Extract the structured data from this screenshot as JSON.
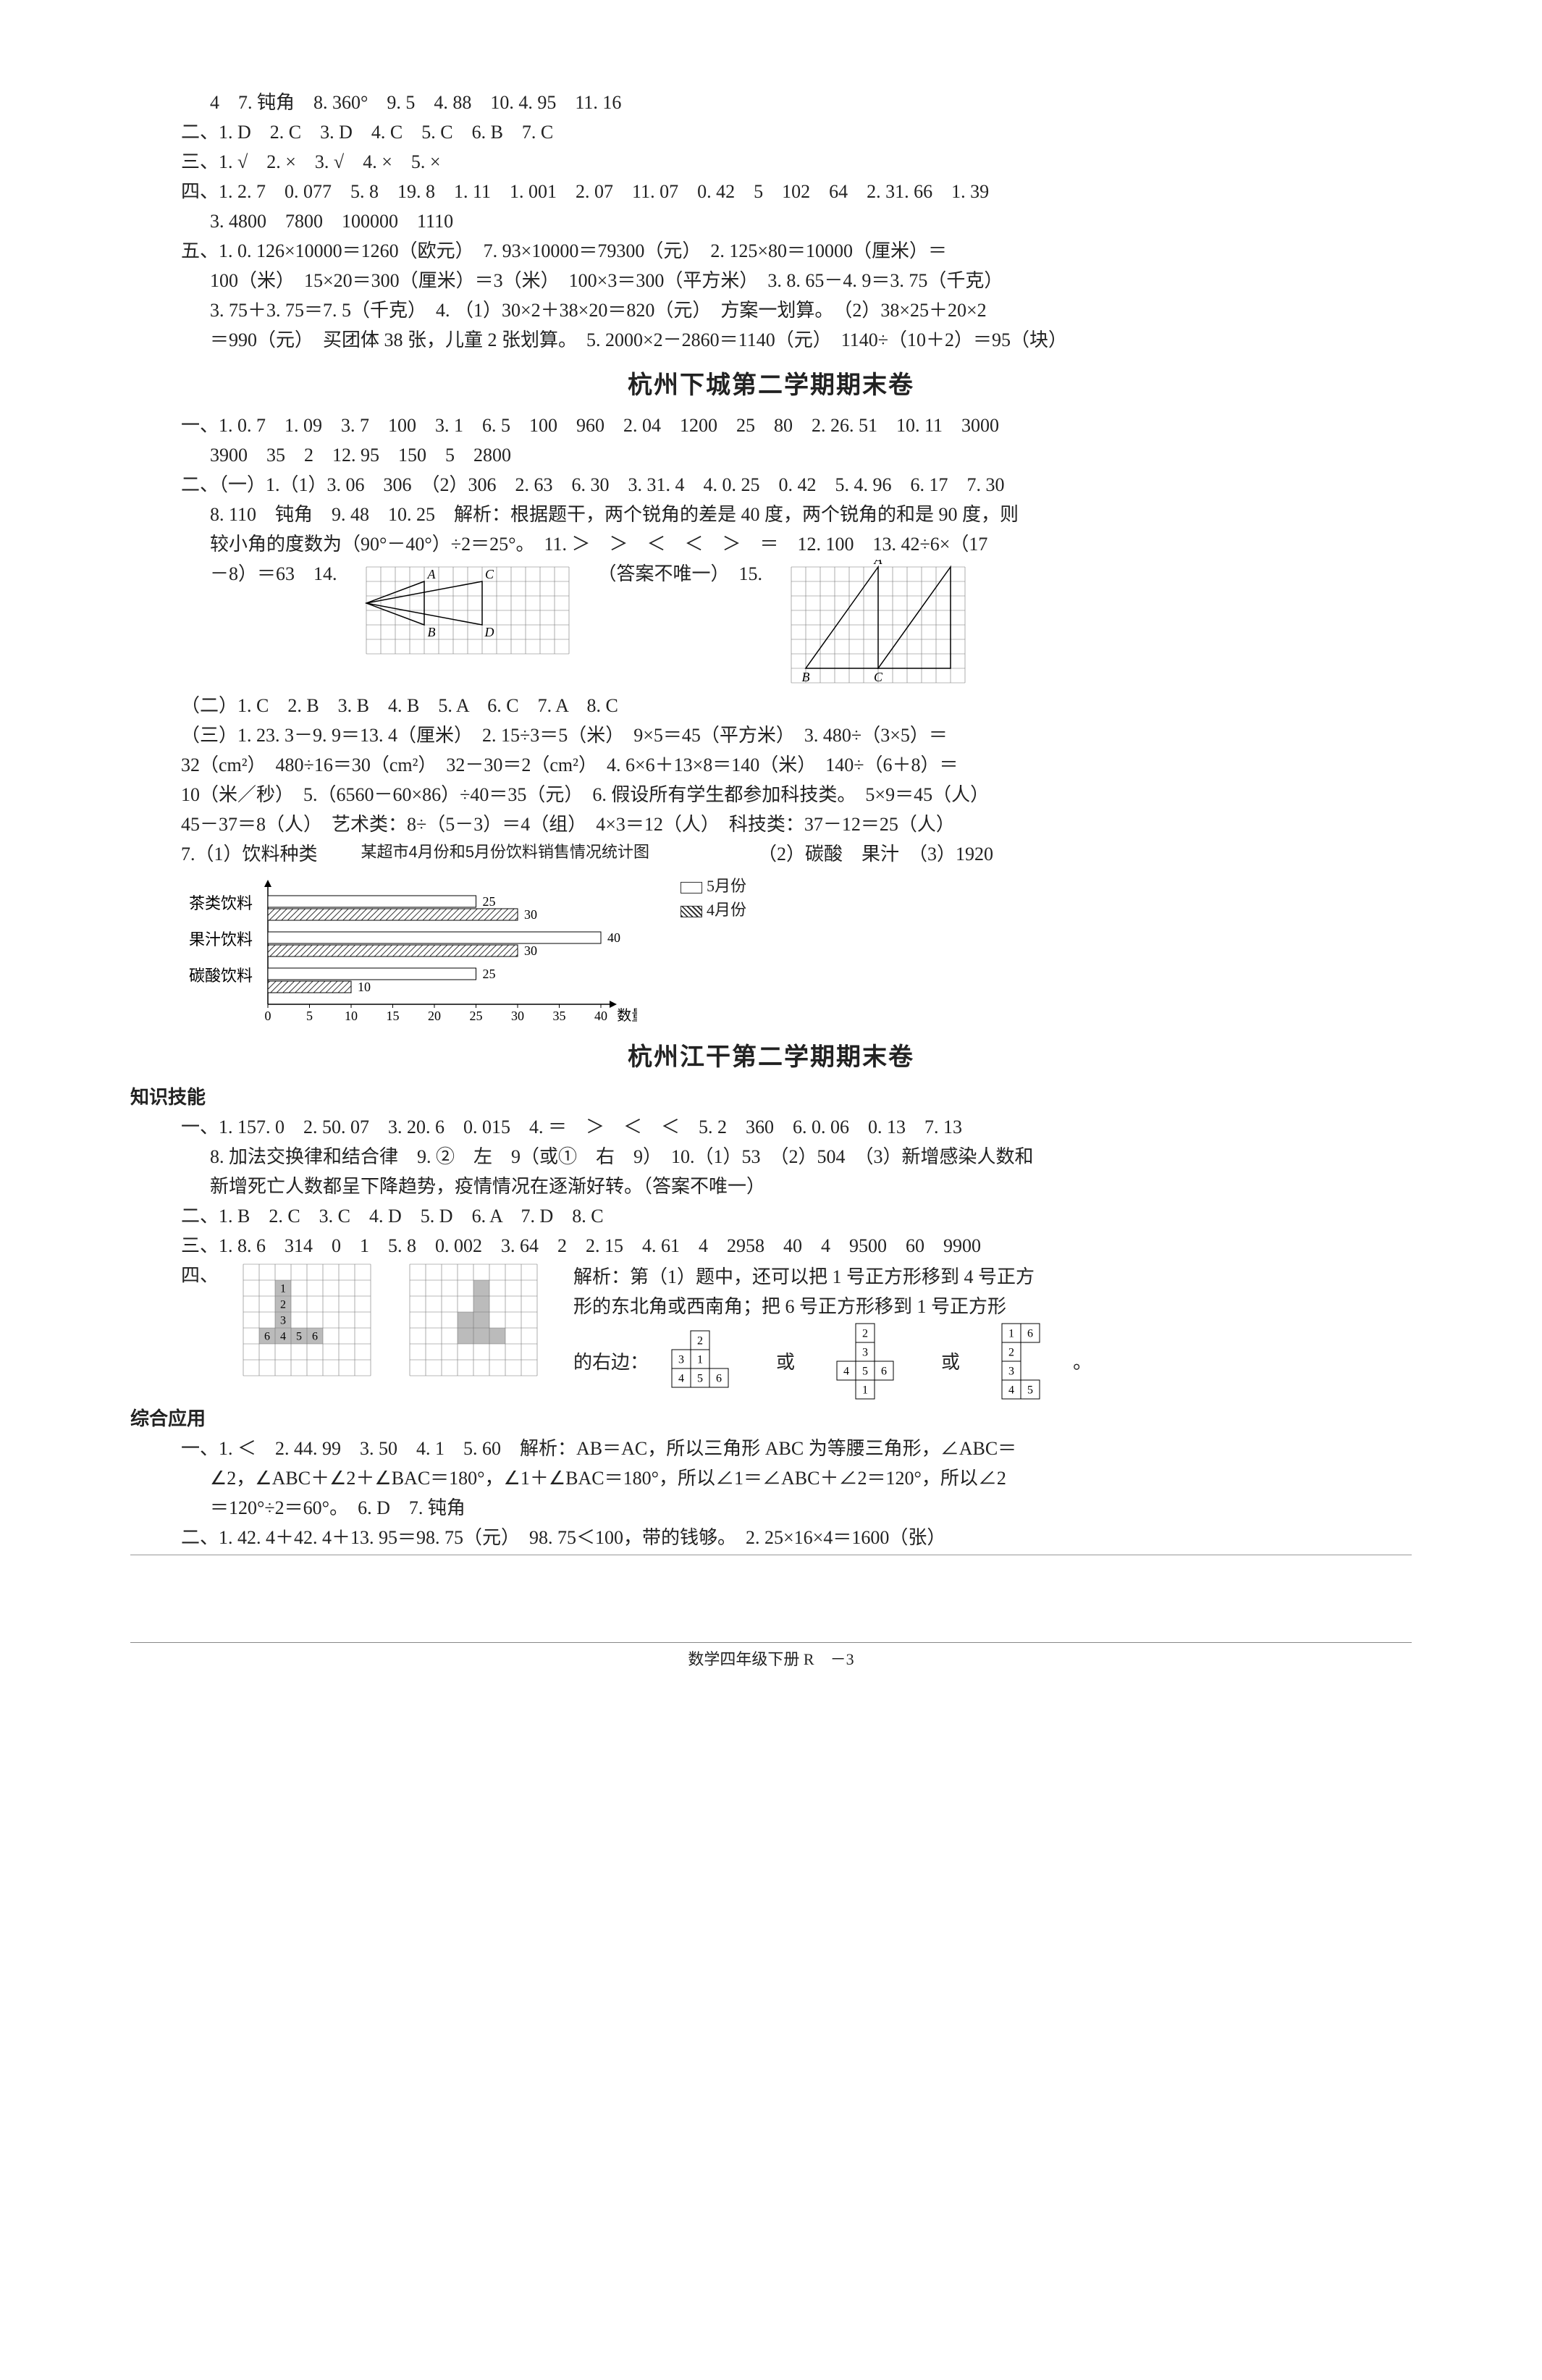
{
  "top": {
    "l1": "4　7. 钝角　8. 360°　9. 5　4. 88　10. 4. 95　11. 16",
    "l2": "二、1. D　2. C　3. D　4. C　5. C　6. B　7. C",
    "l3": "三、1. √　2. ×　3. √　4. ×　5. ×",
    "l4": "四、1. 2. 7　0. 077　5. 8　19. 8　1. 11　1. 001　2. 07　11. 07　0. 42　5　102　64　2. 31. 66　1. 39",
    "l4b": "3. 4800　7800　100000　1110",
    "l5": "五、1. 0. 126×10000＝1260（欧元）　7. 93×10000＝79300（元）　2. 125×80＝10000（厘米）＝",
    "l5b": "100（米）　15×20＝300（厘米）＝3（米）　100×3＝300（平方米）　3. 8. 65－4. 9＝3. 75（千克）",
    "l5c": "3. 75＋3. 75＝7. 5（千克）　4. （1）30×2＋38×20＝820（元）　方案一划算。　（2）38×25＋20×2",
    "l5d": "＝990（元）　买团体 38 张，儿童 2 张划算。　5. 2000×2－2860＝1140（元）　1140÷（10＋2）＝95（块）"
  },
  "title1": "杭州下城第二学期期末卷",
  "xc": {
    "l1": "一、1. 0. 7　1. 09　3. 7　100　3. 1　6. 5　100　960　2. 04　1200　25　80　2. 26. 51　10. 11　3000",
    "l1b": "3900　35　2　12. 95　150　5　2800",
    "l2": "二、（一）1.（1）3. 06　306　（2）306　2. 63　6. 30　3. 31. 4　4. 0. 25　0. 42　5. 4. 96　6. 17　7. 30",
    "l2b": "8. 110　钝角　9. 48　10. 25　解析：根据题干，两个锐角的差是 40 度，两个锐角的和是 90 度，则",
    "l2c": "较小角的度数为（90°－40°）÷2＝25°。　11. ＞　＞　＜　＜　＞　＝　12. 100　13. 42÷6×（17",
    "l2d_pre": "－8）＝63　14.",
    "l2d_mid": "（答案不唯一）　15.",
    "l3": "（二）1. C　2. B　3. B　4. B　5. A　6. C　7. A　8. C",
    "l4": "（三）1. 23. 3－9. 9＝13. 4（厘米）　2. 15÷3＝5（米）　9×5＝45（平方米）　3. 480÷（3×5）＝",
    "l4b": "32（cm²）　480÷16＝30（cm²）　32－30＝2（cm²）　4. 6×6＋13×8＝140（米）　140÷（6＋8）＝",
    "l4c": "10（米／秒）　5.（6560－60×86）÷40＝35（元）　6. 假设所有学生都参加科技类。　5×9＝45（人）",
    "l4d": "45－37＝8（人）　艺术类：8÷（5－3）＝4（组）　4×3＝12（人）　科技类：37－12＝25（人）",
    "l4e": "7.（1）饮料种类",
    "chart_title": "某超市4月份和5月份饮料销售情况统计图",
    "l4e_r": "（2）碳酸　果汁　（3）1920",
    "legend1": "5月份",
    "legend2": "4月份",
    "ylabels": [
      "茶类饮料",
      "果汁饮料",
      "碳酸饮料"
    ],
    "xlabel": "数量/箱",
    "xticks": [
      0,
      5,
      10,
      15,
      20,
      25,
      30,
      35,
      40
    ],
    "bars": {
      "tea": {
        "month5": 25,
        "month4": 30
      },
      "juice": {
        "month5": 40,
        "month4": 30
      },
      "soda": {
        "month5": 25,
        "month4": 10
      }
    },
    "chart_colors": {
      "m5": "#ffffff",
      "m4": "hatch",
      "border": "#333",
      "axis": "#333"
    }
  },
  "title2": "杭州江干第二学期期末卷",
  "jg": {
    "h1": "知识技能",
    "l1": "一、1. 157. 0　2. 50. 07　3. 20. 6　0. 015　4. ＝　＞　＜　＜　5. 2　360　6. 0. 06　0. 13　7. 13",
    "l1b": "8. 加法交换律和结合律　9. ②　左　9（或①　右　9）　10.（1）53　（2）504　（3）新增感染人数和",
    "l1c": "新增死亡人数都呈下降趋势，疫情情况在逐渐好转。（答案不唯一）",
    "l2": "二、1. B　2. C　3. C　4. D　5. D　6. A　7. D　8. C",
    "l3": "三、1. 8. 6　314　0　1　5. 8　0. 002　3. 64　2　2. 15　4. 61　4　2958　40　4　9500　60　9900",
    "l4lead": "四、",
    "l4text1": "解析：第（1）题中，还可以把 1 号正方形移到 4 号正方",
    "l4text2": "形的东北角或西南角；把 6 号正方形移到 1 号正方形",
    "l4text3_pre": "的右边：",
    "l4text3_mid1": "　或　",
    "l4text3_mid2": "　或　",
    "l4text3_post": "。",
    "mini1": [
      [
        "",
        "2",
        ""
      ],
      [
        "3",
        "1",
        ""
      ],
      [
        "4",
        "5",
        "6"
      ]
    ],
    "mini2": [
      [
        "",
        "2"
      ],
      [
        "",
        "3"
      ],
      [
        "4",
        "5",
        "6"
      ],
      [
        "",
        "1"
      ]
    ],
    "mini3": [
      [
        "1",
        "6"
      ],
      [
        "2",
        ""
      ],
      [
        "3",
        ""
      ],
      [
        "4",
        "5"
      ]
    ],
    "h2": "综合应用",
    "l5": "一、1. ＜　2. 44. 99　3. 50　4. 1　5. 60　解析：AB＝AC，所以三角形 ABC 为等腰三角形，∠ABC＝",
    "l5b": "∠2，∠ABC＋∠2＋∠BAC＝180°，∠1＋∠BAC＝180°，所以∠1＝∠ABC＋∠2＝120°，所以∠2",
    "l5c": "＝120°÷2＝60°。　6. D　7. 钝角",
    "l6": "二、1. 42. 4＋42. 4＋13. 95＝98. 75（元）　98. 75＜100，带的钱够。　2. 25×16×4＝1600（张）"
  },
  "grid14": {
    "cols": 14,
    "rows": 6,
    "cell": 20,
    "labels": {
      "A": [
        4,
        1
      ],
      "B": [
        4,
        4
      ],
      "C": [
        8,
        1
      ],
      "D": [
        8,
        4
      ]
    }
  },
  "grid15": {
    "cols": 12,
    "rows": 8,
    "cell": 20,
    "labels": {
      "A": [
        6,
        0
      ],
      "B": [
        1,
        7
      ],
      "C": [
        6,
        7
      ]
    }
  },
  "footer": "数学四年级下册 R　－3"
}
